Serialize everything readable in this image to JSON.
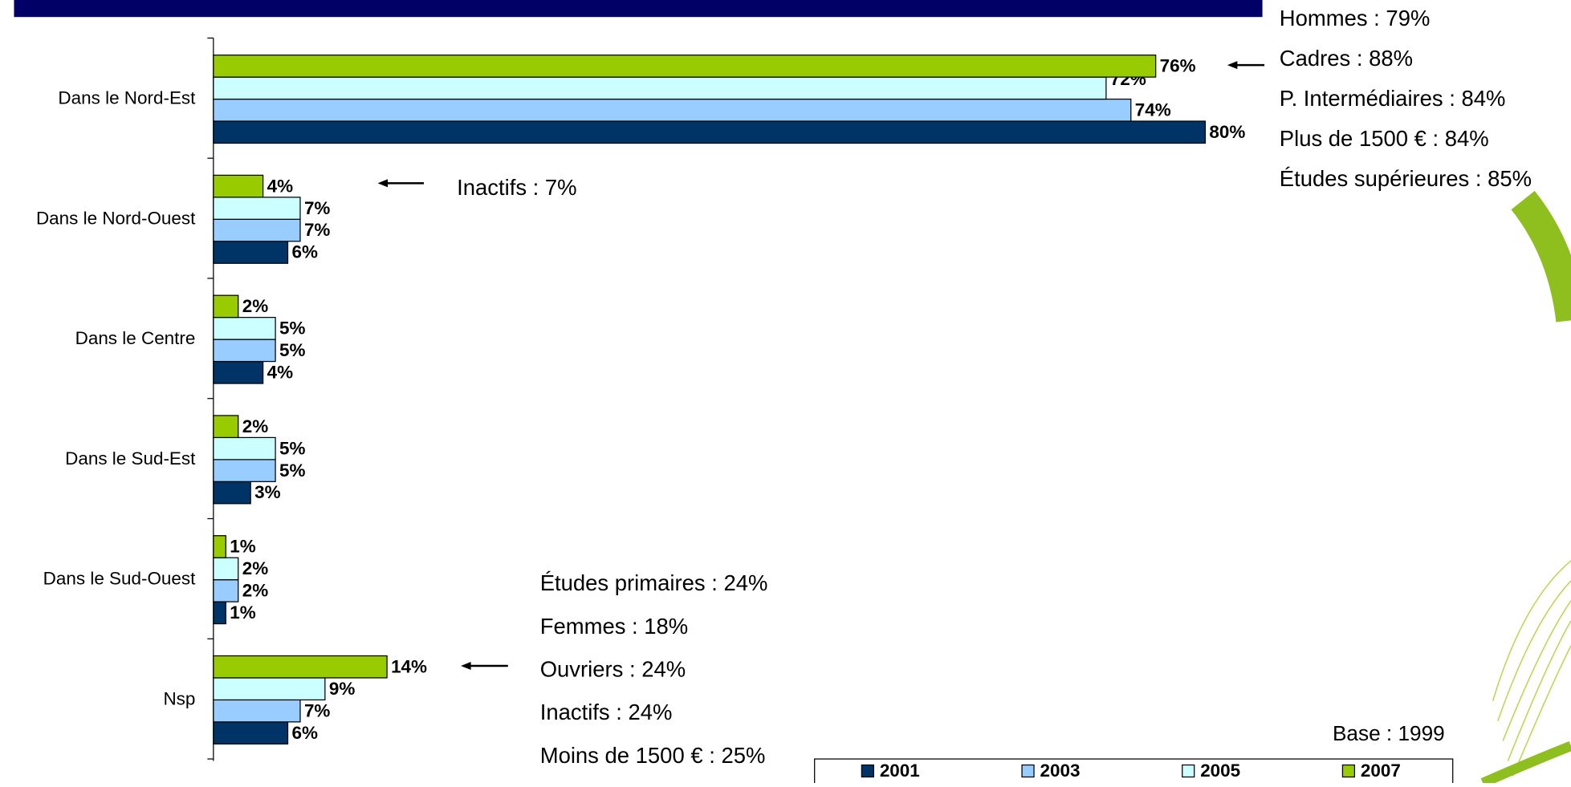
{
  "chart_data": {
    "type": "bar",
    "orientation": "horizontal",
    "categories": [
      "Dans le Nord-Est",
      "Dans le Nord-Ouest",
      "Dans le Centre",
      "Dans le Sud-Est",
      "Dans le Sud-Ouest",
      "Nsp"
    ],
    "series": [
      {
        "name": "2001",
        "color": "#003366",
        "values": [
          80,
          6,
          4,
          3,
          1,
          6
        ],
        "value_labels": [
          "80%",
          "6%",
          "4%",
          "3%",
          "1%",
          "6%"
        ]
      },
      {
        "name": "2003",
        "color": "#99ccff",
        "values": [
          74,
          7,
          5,
          5,
          2,
          7
        ],
        "value_labels": [
          "74%",
          "7%",
          "5%",
          "5%",
          "2%",
          "7%"
        ]
      },
      {
        "name": "2005",
        "color": "#ccffff",
        "values": [
          72,
          7,
          5,
          5,
          2,
          9
        ],
        "value_labels": [
          "72%",
          "7%",
          "5%",
          "5%",
          "2%",
          "9%"
        ]
      },
      {
        "name": "2007",
        "color": "#99cc00",
        "values": [
          76,
          4,
          2,
          2,
          1,
          14
        ],
        "value_labels": [
          "76%",
          "4%",
          "2%",
          "2%",
          "1%",
          "14%"
        ]
      }
    ],
    "xlim": [
      0,
      80
    ],
    "annotations": [
      [
        "Hommes : 79%",
        "Cadres : 88%",
        "P. Intermédiaires : 84%",
        "Plus de 1500 € : 84%",
        "Études supérieures : 85%"
      ],
      [
        "Inactifs : 7%"
      ],
      [
        "Études primaires : 24%",
        "Femmes : 18%",
        "Ouvriers : 24%",
        "Inactifs : 24%",
        "Moins de 1500 € : 25%"
      ]
    ],
    "base": "Base : 1999"
  }
}
